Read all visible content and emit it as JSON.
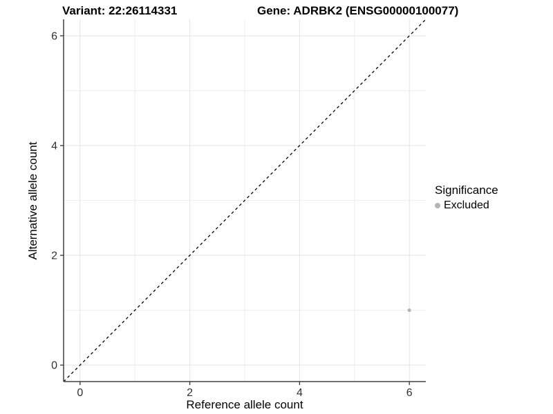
{
  "header": {
    "variant_label": "Variant: 22:26114331",
    "gene_label": "Gene: ADRBK2 (ENSG00000100077)"
  },
  "colors": {
    "background": "#ffffff",
    "grid_major": "#e3e3e3",
    "grid_minor": "#ededed",
    "axis_line": "#404040",
    "tick_mark": "#333333",
    "tick_label": "#303030",
    "identity_line": "#000000",
    "point_excluded": "#b4b4b4",
    "text": "#000000"
  },
  "chart_data": {
    "type": "scatter",
    "xlabel": "Reference allele count",
    "ylabel": "Alternative allele count",
    "xlim": [
      -0.3,
      6.3
    ],
    "ylim": [
      -0.3,
      6.3
    ],
    "x_ticks": [
      0,
      2,
      4,
      6
    ],
    "y_ticks": [
      0,
      2,
      4,
      6
    ],
    "x_minor_grid": [
      1,
      3,
      5
    ],
    "y_minor_grid": [
      1,
      3,
      5
    ],
    "grid": true,
    "identity_line": {
      "style": "dashed",
      "slope": 1,
      "intercept": 0
    },
    "points": [
      {
        "x": 6,
        "y": 1,
        "series": "Excluded"
      }
    ],
    "legend": {
      "title": "Significance",
      "position": "right",
      "entries": [
        {
          "label": "Excluded",
          "color": "#b4b4b4"
        }
      ]
    }
  }
}
